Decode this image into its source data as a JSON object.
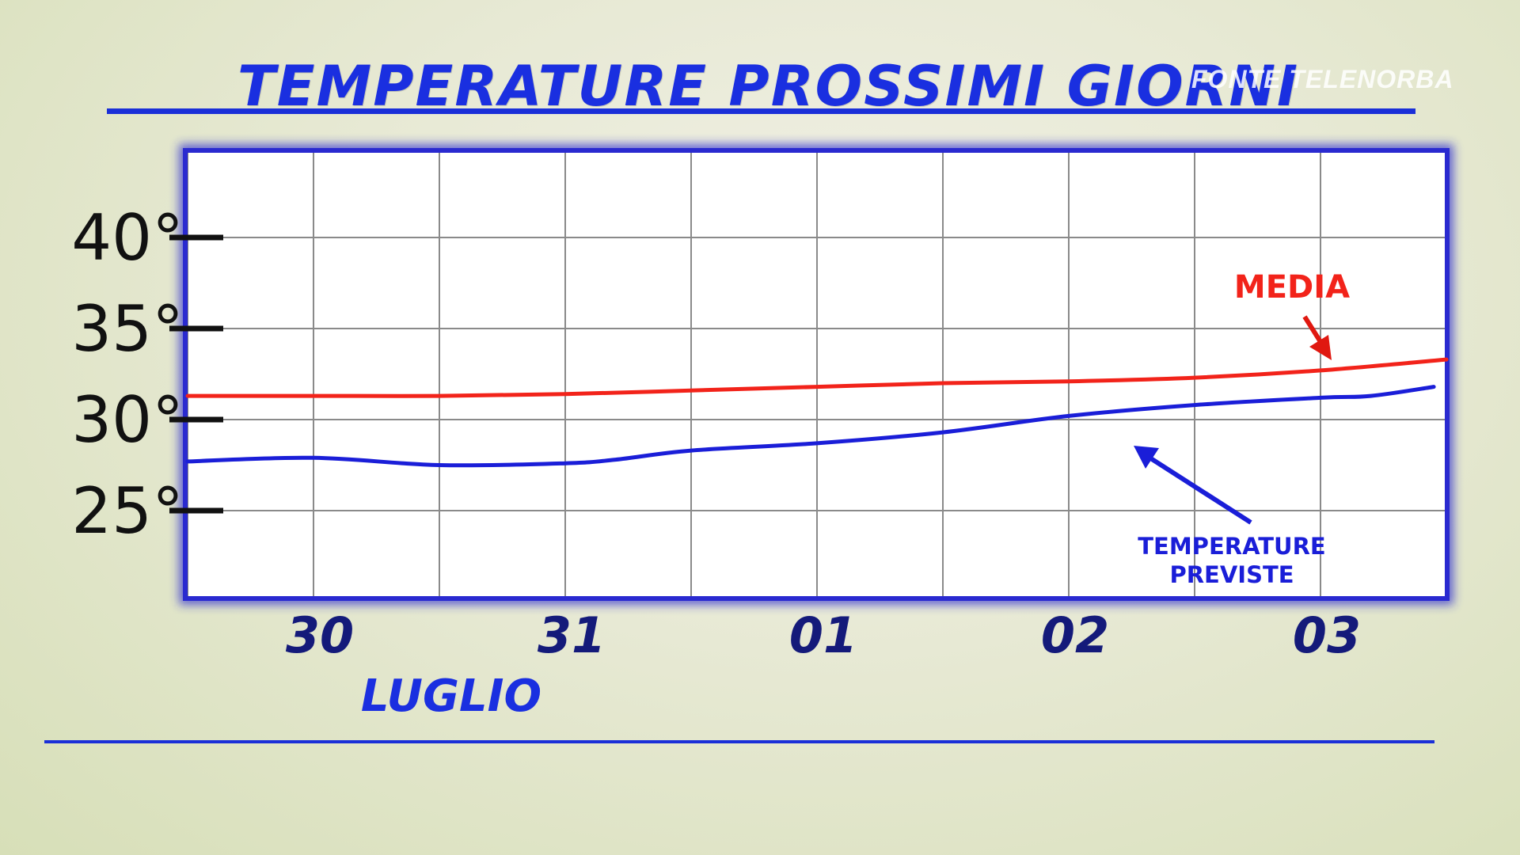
{
  "title": "TEMPERATURE PROSSIMI GIORNI",
  "watermark": "FONTE TELENORBA",
  "colors": {
    "title": "#1a2fe0",
    "media": "#f2231a",
    "previste": "#1a1ed8",
    "frame": "#2a2ad0"
  },
  "chart_data": {
    "type": "line",
    "title": "TEMPERATURE PROSSIMI GIORNI",
    "xlabel": "LUGLIO",
    "ylabel": "",
    "ylim": [
      20,
      45
    ],
    "x_ticks": [
      "30",
      "31",
      "01",
      "02",
      "03"
    ],
    "y_ticks": [
      "25°",
      "30°",
      "35°",
      "40°"
    ],
    "y_tick_values": [
      25,
      30,
      35,
      40
    ],
    "grid": true,
    "series": [
      {
        "name": "MEDIA",
        "color": "#f2231a",
        "x": [
          -0.5,
          0,
          0.5,
          1,
          1.5,
          2,
          2.5,
          3,
          3.5,
          4,
          4.5
        ],
        "y": [
          31.3,
          31.3,
          31.3,
          31.4,
          31.6,
          31.8,
          32,
          32.1,
          32.3,
          32.7,
          33.3
        ]
      },
      {
        "name": "TEMPERATURE PREVISTE",
        "color": "#1a1ed8",
        "x": [
          -0.5,
          0,
          0.5,
          1,
          1.2,
          1.5,
          2,
          2.5,
          3,
          3.5,
          4,
          4.2,
          4.45
        ],
        "y": [
          27.7,
          27.9,
          27.5,
          27.6,
          27.8,
          28.3,
          28.7,
          29.3,
          30.2,
          30.8,
          31.2,
          31.3,
          31.8
        ]
      }
    ],
    "annotations": {
      "media": "MEDIA",
      "previste": [
        "TEMPERATURE",
        "PREVISTE"
      ]
    }
  }
}
